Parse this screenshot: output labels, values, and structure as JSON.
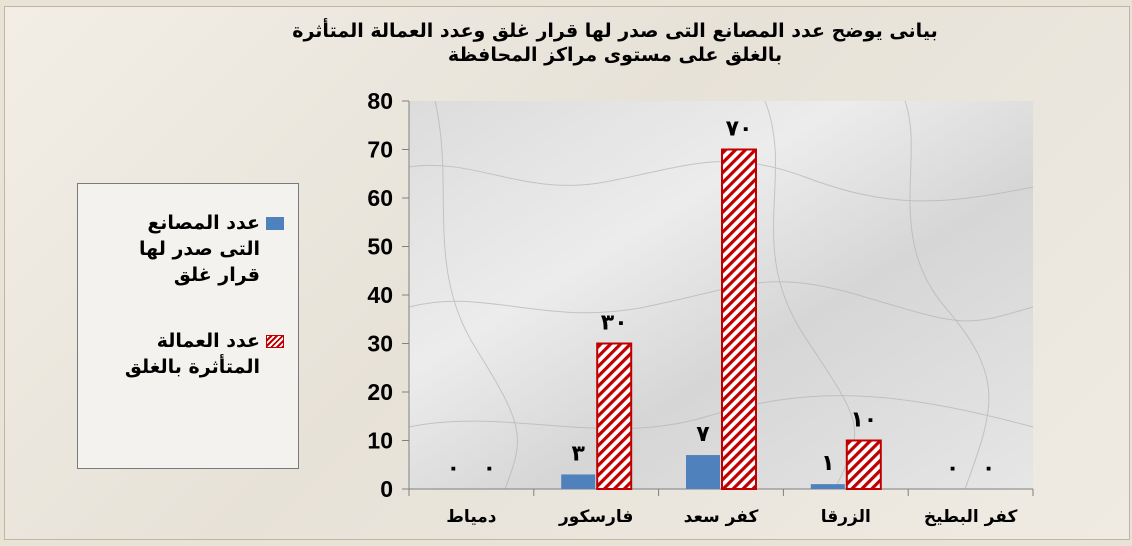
{
  "chart_data": {
    "type": "bar",
    "title": "بيانى يوضح عدد المصانع التى صدر لها قرار غلق وعدد العمالة المتأثرة بالغلق على مستوى مراكز المحافظة",
    "title_lines": [
      "بيانى يوضح عدد المصانع التى صدر لها قرار غلق وعدد العمالة المتأثرة",
      "بالغلق على مستوى مراكز المحافظة"
    ],
    "categories": [
      "كفر البطيخ",
      "الزرقا",
      "كفر سعد",
      "فارسكور",
      "دمياط"
    ],
    "category_order": "right-to-left",
    "series": [
      {
        "name": "عدد المصانع التى صدر لها قرار غلق",
        "name_lines": [
          "عدد المصانع",
          "التى صدر لها",
          "قرار غلق"
        ],
        "values": [
          0,
          1,
          7,
          3,
          0
        ],
        "data_labels": [
          "٠",
          "١",
          "٧",
          "٣",
          "٠"
        ],
        "color": "#4f81bd",
        "fill": "solid"
      },
      {
        "name": "عدد العمالة المتأثرة بالغلق",
        "name_lines": [
          "عدد العمالة",
          "المتأثرة بالغلق"
        ],
        "values": [
          0,
          10,
          70,
          30,
          0
        ],
        "data_labels": [
          "٠",
          "١٠",
          "٧٠",
          "٣٠",
          "٠"
        ],
        "color": "#c00000",
        "fill": "diagonal-hatch"
      }
    ],
    "ylim": [
      0,
      80
    ],
    "yticks": [
      "0",
      "10",
      "20",
      "30",
      "40",
      "50",
      "60",
      "70",
      "80"
    ],
    "xlabel": "",
    "ylabel": "",
    "grid": false,
    "legend": "left"
  }
}
